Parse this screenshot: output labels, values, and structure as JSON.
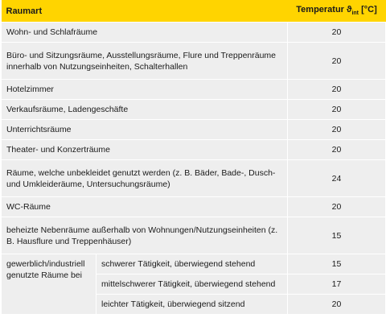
{
  "header": {
    "col1": "Raumart",
    "temp_prefix": "Temperatur ϑ",
    "temp_sub": "int",
    "temp_unit": "[°C]"
  },
  "rows": [
    {
      "label": "Wohn- und Schlafräume",
      "value": "20"
    },
    {
      "label": "Büro- und Sitzungsräume, Ausstellungsräume, Flure und Treppenräume innerhalb von Nutzungseinheiten, Schalterhallen",
      "value": "20"
    },
    {
      "label": "Hotelzimmer",
      "value": "20"
    },
    {
      "label": "Verkaufsräume, Ladengeschäfte",
      "value": "20"
    },
    {
      "label": "Unterrichtsräume",
      "value": "20"
    },
    {
      "label": "Theater- und Konzerträume",
      "value": "20"
    },
    {
      "label": "Räume, welche unbekleidet genutzt werden (z. B. Bäder, Bade-, Dusch- und Umkleideräume, Untersuchungsräume)",
      "value": "24"
    },
    {
      "label": "WC-Räume",
      "value": "20"
    },
    {
      "label": "beheizte Nebenräume außerhalb von Wohnungen/Nutzungseinheiten (z. B. Hausflure und Treppenhäuser)",
      "value": "15"
    }
  ],
  "industrial": {
    "label": "gewerblich/industriell genutzte Räume bei",
    "subrows": [
      {
        "label": "schwerer Tätigkeit, überwiegend stehend",
        "value": "15"
      },
      {
        "label": "mittelschwerer Tätigkeit, überwiegend stehend",
        "value": "17"
      },
      {
        "label": "leichter Tätigkeit, überwiegend sitzend",
        "value": "20"
      }
    ]
  }
}
